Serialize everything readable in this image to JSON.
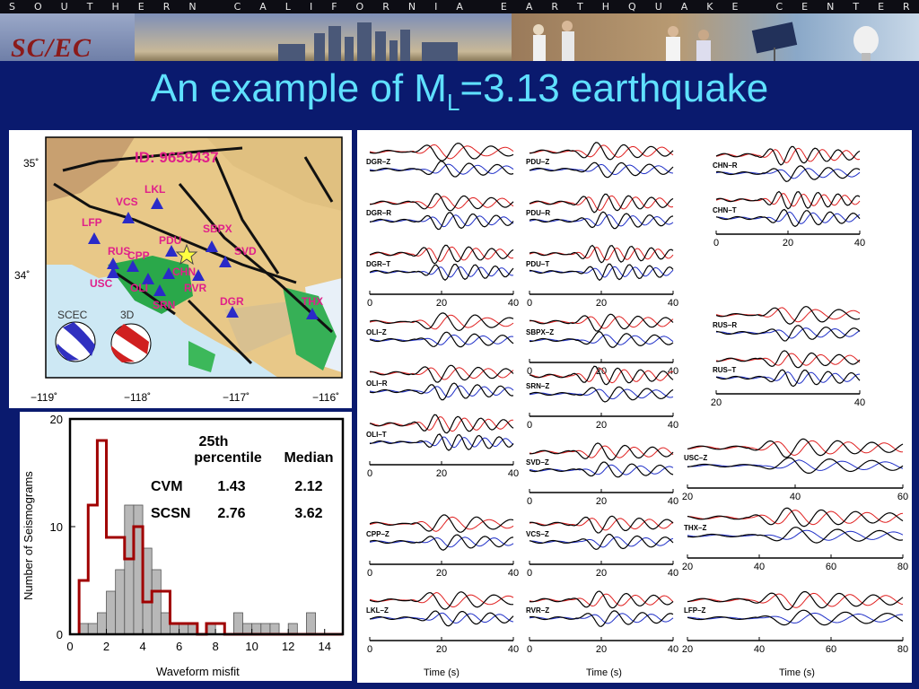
{
  "banner": {
    "org_letters": [
      "S",
      "O",
      "U",
      "T",
      "H",
      "E",
      "R",
      "N",
      "",
      "C",
      "A",
      "L",
      "I",
      "F",
      "O",
      "R",
      "N",
      "I",
      "A",
      "",
      "E",
      "A",
      "R",
      "T",
      "H",
      "Q",
      "U",
      "A",
      "K",
      "E",
      "",
      "C",
      "E",
      "N",
      "T",
      "E",
      "R"
    ],
    "logo": "SC/EC"
  },
  "slide": {
    "title_pre": "An example of M",
    "title_sub": "L",
    "title_post": "=3.13 earthquake"
  },
  "map": {
    "event_id": "ID: 9659437",
    "lat_labels": [
      "35˚",
      "34˚"
    ],
    "lon_labels": [
      "−119˚",
      "−118˚",
      "−117˚",
      "−116˚"
    ],
    "stations": [
      "LKL",
      "VCS",
      "LFP",
      "SBPX",
      "PDU",
      "SVD",
      "RUS",
      "CPP",
      "CHN",
      "USC",
      "OLI",
      "RVR",
      "SRN",
      "DGR",
      "THX"
    ],
    "mech_labels": [
      "SCEC",
      "3D"
    ]
  },
  "histogram": {
    "ylabel": "Number of Seismograms",
    "xlabel": "Waveform misfit",
    "x_ticks": [
      "0",
      "2",
      "4",
      "6",
      "8",
      "10",
      "12",
      "14"
    ],
    "y_ticks": [
      "0",
      "10",
      "20"
    ],
    "table": {
      "col1_head": [
        "25th",
        "percentile"
      ],
      "col2_head": "Median",
      "rows": [
        {
          "name": "CVM",
          "p25": "1.43",
          "median": "2.12"
        },
        {
          "name": "SCSN",
          "p25": "2.76",
          "median": "3.62"
        }
      ]
    }
  },
  "chart_data": {
    "type": "bar",
    "xlabel": "Waveform misfit",
    "ylabel": "Number of Seismograms",
    "xlim": [
      0,
      15
    ],
    "ylim": [
      0,
      20
    ],
    "bin_width": 0.5,
    "bin_starts": [
      0.5,
      1.0,
      1.5,
      2.0,
      2.5,
      3.0,
      3.5,
      4.0,
      4.5,
      5.0,
      5.5,
      6.0,
      6.5,
      7.0,
      7.5,
      8.0,
      8.5,
      9.0,
      9.5,
      10.0,
      10.5,
      11.0,
      11.5,
      12.0,
      12.5,
      13.0,
      13.5
    ],
    "series": [
      {
        "values": [
          1,
          1,
          2,
          4,
          6,
          12,
          12,
          8,
          6,
          2,
          1,
          1,
          1,
          0,
          1,
          0,
          0,
          2,
          1,
          1,
          1,
          1,
          0,
          1,
          0,
          2,
          0
        ]
      },
      {
        "values": [
          5,
          12,
          18,
          9,
          9,
          7,
          10,
          3,
          4,
          4,
          1,
          1,
          1,
          0,
          1,
          1,
          0,
          0,
          0,
          0,
          0,
          0,
          0,
          0,
          0,
          0,
          0
        ]
      }
    ]
  },
  "waveforms": {
    "panels": [
      {
        "labels": [
          "DGR–Z",
          "DGR–R",
          "DGR–T"
        ],
        "ticks": [
          "0",
          "20",
          "40"
        ]
      },
      {
        "labels": [
          "PDU–Z",
          "PDU–R",
          "PDU–T"
        ],
        "ticks": [
          "0",
          "20",
          "40"
        ]
      },
      {
        "labels": [
          "CHN–R",
          "CHN–T"
        ],
        "ticks": [
          "0",
          "20",
          "40"
        ]
      },
      {
        "labels": [
          "OLI–Z",
          "OLI–R",
          "OLI–T"
        ],
        "ticks": [
          "0",
          "20",
          "40"
        ]
      },
      {
        "labels": [
          "SBPX–Z"
        ],
        "ticks": [
          "0",
          "20",
          "40"
        ]
      },
      {
        "labels": [
          "SRN–Z"
        ],
        "ticks": [
          "0",
          "20",
          "40"
        ]
      },
      {
        "labels": [
          "RUS–R",
          "RUS–T"
        ],
        "ticks": [
          "20",
          "40"
        ]
      },
      {
        "labels": [
          "SVD–Z"
        ],
        "ticks": [
          "0",
          "20",
          "40"
        ]
      },
      {
        "labels": [
          "USC–Z"
        ],
        "ticks": [
          "20",
          "40",
          "60"
        ]
      },
      {
        "labels": [
          "CPP–Z"
        ],
        "ticks": [
          "0",
          "20",
          "40"
        ]
      },
      {
        "labels": [
          "VCS–Z"
        ],
        "ticks": [
          "0",
          "20",
          "40"
        ]
      },
      {
        "labels": [
          "THX–Z"
        ],
        "ticks": [
          "20",
          "40",
          "60",
          "80"
        ]
      },
      {
        "labels": [
          "LKL–Z"
        ],
        "ticks": [
          "0",
          "20",
          "40"
        ]
      },
      {
        "labels": [
          "RVR–Z"
        ],
        "ticks": [
          "0",
          "20",
          "40"
        ]
      },
      {
        "labels": [
          "LFP–Z"
        ],
        "ticks": [
          "20",
          "40",
          "60",
          "80"
        ]
      }
    ],
    "time_label": "Time (s)",
    "colors": {
      "data": "#000000",
      "model_red": "#e02020",
      "model_blue": "#2030c8"
    }
  }
}
